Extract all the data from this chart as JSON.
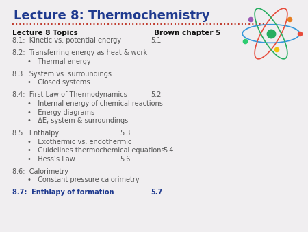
{
  "title": "Lecture 8: Thermochemistry",
  "title_color": "#1F3A8F",
  "title_fontsize": 13,
  "background_color": "#F0EEF0",
  "dot_color": "#C0392B",
  "header_left": "Lecture 8 Topics",
  "header_right": "Brown chapter 5",
  "header_fontsize": 7.5,
  "content_fontsize": 7,
  "content_color": "#555555",
  "bold_color": "#1F3A8F",
  "lines": [
    {
      "text": "8.1:  Kinetic vs. potential energy",
      "indent": 0,
      "chapter": "5.1",
      "chapter_col": 0.49
    },
    {
      "text": "",
      "indent": 0,
      "chapter": "",
      "chapter_col": null
    },
    {
      "text": "8.2:  Transferring energy as heat & work",
      "indent": 0,
      "chapter": "",
      "chapter_col": null
    },
    {
      "text": "•   Thermal energy",
      "indent": 1,
      "chapter": "",
      "chapter_col": null
    },
    {
      "text": "",
      "indent": 0,
      "chapter": "",
      "chapter_col": null
    },
    {
      "text": "8.3:  System vs. surroundings",
      "indent": 0,
      "chapter": "",
      "chapter_col": null
    },
    {
      "text": "•   Closed systems",
      "indent": 1,
      "chapter": "",
      "chapter_col": null
    },
    {
      "text": "",
      "indent": 0,
      "chapter": "",
      "chapter_col": null
    },
    {
      "text": "8.4:  First Law of Thermodynamics",
      "indent": 0,
      "chapter": "5.2",
      "chapter_col": 0.49
    },
    {
      "text": "•   Internal energy of chemical reactions",
      "indent": 1,
      "chapter": "",
      "chapter_col": null
    },
    {
      "text": "•   Energy diagrams",
      "indent": 1,
      "chapter": "",
      "chapter_col": null
    },
    {
      "text": "•   ΔE, system & surroundings",
      "indent": 1,
      "chapter": "",
      "chapter_col": null
    },
    {
      "text": "",
      "indent": 0,
      "chapter": "",
      "chapter_col": null
    },
    {
      "text": "8.5:  Enthalpy",
      "indent": 0,
      "chapter": "5.3",
      "chapter_col": 0.39
    },
    {
      "text": "•   Exothermic vs. endothermic",
      "indent": 1,
      "chapter": "",
      "chapter_col": null
    },
    {
      "text": "•   Guidelines thermochemical equations",
      "indent": 1,
      "chapter": "5.4",
      "chapter_col": 0.53
    },
    {
      "text": "•   Hess’s Law",
      "indent": 1,
      "chapter": "5.6",
      "chapter_col": 0.39
    },
    {
      "text": "",
      "indent": 0,
      "chapter": "",
      "chapter_col": null
    },
    {
      "text": "8.6:  Calorimetry",
      "indent": 0,
      "chapter": "",
      "chapter_col": null
    },
    {
      "text": "•   Constant pressure calorimetry",
      "indent": 1,
      "chapter": "",
      "chapter_col": null
    },
    {
      "text": "",
      "indent": 0,
      "chapter": "",
      "chapter_col": null
    },
    {
      "text": "8.7:  Enthlapy of formation",
      "indent": 0,
      "chapter": "5.7",
      "chapter_col": 0.49,
      "bold": true
    }
  ]
}
